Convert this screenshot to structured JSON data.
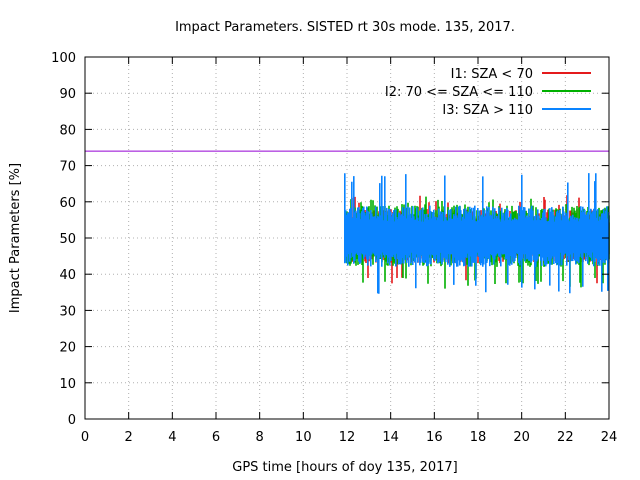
{
  "chart_data": {
    "type": "line",
    "title": "Impact Parameters. SISTED rt 30s mode. 135, 2017.",
    "xlabel": "GPS time [hours of doy 135, 2017]",
    "ylabel": "Impact Parameters [%]",
    "xlim": [
      0,
      24
    ],
    "ylim": [
      0,
      100
    ],
    "x_ticks": [
      0,
      2,
      4,
      6,
      8,
      10,
      12,
      14,
      16,
      18,
      20,
      22,
      24
    ],
    "y_ticks": [
      0,
      10,
      20,
      30,
      40,
      50,
      60,
      70,
      80,
      90,
      100
    ],
    "grid": true,
    "legend_position": "top-right",
    "reference_line": {
      "y": 74,
      "color": "#9400d3"
    },
    "series": [
      {
        "name": "I1: SZA < 70",
        "color": "#e41a1c",
        "x_start": 12,
        "x_end": 24,
        "center": 50,
        "spread_low": 43,
        "spread_high": 58,
        "extreme_low": 37,
        "extreme_high": 62,
        "seed": 11
      },
      {
        "name": "I2: 70 <= SZA <= 110",
        "color": "#00b000",
        "x_start": 12,
        "x_end": 24,
        "center": 50,
        "spread_low": 42,
        "spread_high": 59,
        "extreme_low": 36,
        "extreme_high": 62,
        "seed": 23
      },
      {
        "name": "I3: SZA > 110",
        "color": "#0a84ff",
        "x_start": 11.9,
        "x_end": 24,
        "center": 50,
        "spread_low": 42,
        "spread_high": 59,
        "extreme_low": 34.5,
        "extreme_high": 68,
        "seed": 37
      }
    ]
  }
}
